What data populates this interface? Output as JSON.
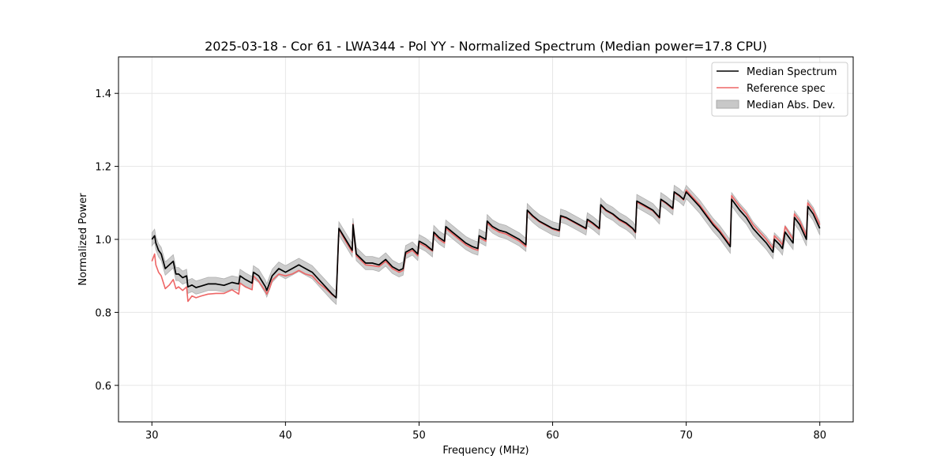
{
  "chart_data": {
    "type": "line",
    "title": "2025-03-18 - Cor 61 - LWA344 - Pol YY - Normalized Spectrum (Median power=17.8 CPU)",
    "xlabel": "Frequency (MHz)",
    "ylabel": "Normalized Power",
    "xlim": [
      27.5,
      82.5
    ],
    "ylim": [
      0.5,
      1.5
    ],
    "x_ticks": [
      30,
      40,
      50,
      60,
      70,
      80
    ],
    "y_ticks": [
      0.6,
      0.8,
      1.0,
      1.2,
      1.4
    ],
    "x_tick_labels": [
      "30",
      "40",
      "50",
      "60",
      "70",
      "80"
    ],
    "y_tick_labels": [
      "0.6",
      "0.8",
      "1.0",
      "1.2",
      "1.4"
    ],
    "grid": true,
    "legend_position": "top-right",
    "mad_halfwidth": 0.018,
    "series": [
      {
        "name": "Median Spectrum",
        "color": "#000000",
        "x": [
          30.0,
          30.2,
          30.3,
          30.5,
          30.7,
          31.0,
          31.3,
          31.6,
          31.8,
          32.0,
          32.3,
          32.6,
          32.7,
          33.0,
          33.3,
          33.7,
          34.2,
          34.8,
          35.4,
          36.0,
          36.5,
          36.6,
          37.0,
          37.5,
          37.6,
          38.0,
          38.5,
          38.6,
          38.8,
          39.0,
          39.5,
          40.0,
          40.5,
          41.0,
          41.5,
          42.0,
          42.5,
          43.0,
          43.5,
          43.8,
          44.0,
          44.5,
          45.0,
          45.05,
          45.3,
          46.0,
          46.5,
          47.0,
          47.5,
          48.0,
          48.5,
          48.8,
          49.0,
          49.5,
          49.9,
          50.0,
          50.5,
          51.0,
          51.1,
          51.5,
          51.9,
          52.0,
          52.5,
          53.0,
          53.5,
          54.0,
          54.4,
          54.5,
          55.0,
          55.1,
          55.5,
          56.0,
          56.5,
          57.0,
          57.5,
          58.0,
          58.1,
          58.5,
          59.0,
          59.5,
          60.0,
          60.5,
          60.6,
          61.0,
          61.5,
          62.0,
          62.5,
          62.6,
          63.0,
          63.5,
          63.6,
          64.0,
          64.5,
          65.0,
          65.5,
          66.0,
          66.2,
          66.3,
          66.8,
          67.5,
          68.0,
          68.1,
          68.5,
          69.0,
          69.1,
          69.5,
          69.8,
          70.0,
          70.5,
          71.0,
          71.5,
          72.0,
          72.5,
          73.0,
          73.3,
          73.4,
          74.0,
          74.5,
          75.0,
          75.5,
          76.0,
          76.5,
          76.6,
          77.0,
          77.2,
          77.4,
          78.0,
          78.1,
          78.5,
          79.0,
          79.1,
          79.5,
          80.0
        ],
        "y": [
          1.0,
          1.01,
          0.99,
          0.97,
          0.96,
          0.92,
          0.93,
          0.94,
          0.905,
          0.905,
          0.895,
          0.9,
          0.87,
          0.875,
          0.868,
          0.872,
          0.878,
          0.878,
          0.874,
          0.882,
          0.878,
          0.9,
          0.89,
          0.88,
          0.91,
          0.9,
          0.87,
          0.86,
          0.88,
          0.9,
          0.92,
          0.91,
          0.92,
          0.93,
          0.92,
          0.91,
          0.89,
          0.87,
          0.85,
          0.84,
          1.03,
          1.0,
          0.97,
          1.04,
          0.96,
          0.935,
          0.935,
          0.93,
          0.945,
          0.925,
          0.915,
          0.92,
          0.965,
          0.975,
          0.96,
          0.995,
          0.985,
          0.97,
          1.02,
          1.005,
          0.995,
          1.035,
          1.02,
          1.005,
          0.99,
          0.98,
          0.975,
          1.01,
          1.0,
          1.05,
          1.035,
          1.025,
          1.02,
          1.01,
          1.0,
          0.985,
          1.08,
          1.065,
          1.05,
          1.04,
          1.03,
          1.025,
          1.065,
          1.06,
          1.05,
          1.04,
          1.03,
          1.055,
          1.045,
          1.03,
          1.095,
          1.08,
          1.07,
          1.055,
          1.045,
          1.03,
          1.02,
          1.105,
          1.095,
          1.08,
          1.06,
          1.11,
          1.1,
          1.085,
          1.13,
          1.12,
          1.11,
          1.13,
          1.11,
          1.09,
          1.065,
          1.04,
          1.02,
          0.995,
          0.98,
          1.11,
          1.08,
          1.06,
          1.03,
          1.01,
          0.99,
          0.965,
          1.0,
          0.985,
          0.975,
          1.02,
          0.99,
          1.06,
          1.04,
          1.0,
          1.09,
          1.07,
          1.03
        ]
      },
      {
        "name": "Reference spec",
        "color": "#ee6666",
        "x": [
          30.0,
          30.2,
          30.3,
          30.5,
          30.7,
          31.0,
          31.3,
          31.6,
          31.8,
          32.0,
          32.3,
          32.6,
          32.7,
          33.0,
          33.3,
          33.7,
          34.2,
          34.8,
          35.4,
          36.0,
          36.5,
          36.6,
          37.0,
          37.5,
          37.6,
          38.0,
          38.5,
          38.6,
          38.8,
          39.0,
          39.5,
          40.0,
          40.5,
          41.0,
          41.5,
          42.0,
          42.5,
          43.0,
          43.5,
          43.8,
          44.0,
          44.5,
          45.0,
          45.05,
          45.3,
          46.0,
          46.5,
          47.0,
          47.5,
          48.0,
          48.5,
          48.8,
          49.0,
          49.5,
          49.9,
          50.0,
          50.5,
          51.0,
          51.1,
          51.5,
          51.9,
          52.0,
          52.5,
          53.0,
          53.5,
          54.0,
          54.4,
          54.5,
          55.0,
          55.1,
          55.5,
          56.0,
          56.5,
          57.0,
          57.5,
          58.0,
          58.1,
          58.5,
          59.0,
          59.5,
          60.0,
          60.5,
          60.6,
          61.0,
          61.5,
          62.0,
          62.5,
          62.6,
          63.0,
          63.5,
          63.6,
          64.0,
          64.5,
          65.0,
          65.5,
          66.0,
          66.2,
          66.3,
          66.8,
          67.5,
          68.0,
          68.1,
          68.5,
          69.0,
          69.1,
          69.5,
          69.8,
          70.0,
          70.5,
          71.0,
          71.5,
          72.0,
          72.5,
          73.0,
          73.3,
          73.4,
          74.0,
          74.5,
          75.0,
          75.5,
          76.0,
          76.5,
          76.6,
          77.0,
          77.2,
          77.4,
          78.0,
          78.1,
          78.5,
          79.0,
          79.1,
          79.5,
          80.0
        ],
        "y": [
          0.94,
          0.96,
          0.93,
          0.91,
          0.9,
          0.865,
          0.875,
          0.89,
          0.865,
          0.87,
          0.86,
          0.87,
          0.83,
          0.845,
          0.84,
          0.845,
          0.85,
          0.852,
          0.852,
          0.862,
          0.85,
          0.88,
          0.87,
          0.862,
          0.9,
          0.885,
          0.858,
          0.85,
          0.865,
          0.888,
          0.905,
          0.9,
          0.905,
          0.915,
          0.905,
          0.9,
          0.88,
          0.865,
          0.848,
          0.84,
          1.028,
          0.995,
          0.965,
          1.042,
          0.955,
          0.93,
          0.928,
          0.925,
          0.94,
          0.92,
          0.91,
          0.915,
          0.96,
          0.97,
          0.955,
          0.99,
          0.98,
          0.968,
          1.015,
          1.0,
          0.99,
          1.03,
          1.015,
          1.0,
          0.985,
          0.975,
          0.97,
          1.005,
          0.995,
          1.045,
          1.03,
          1.02,
          1.015,
          1.005,
          0.995,
          0.98,
          1.078,
          1.062,
          1.048,
          1.038,
          1.028,
          1.022,
          1.062,
          1.058,
          1.048,
          1.038,
          1.028,
          1.052,
          1.042,
          1.028,
          1.092,
          1.078,
          1.068,
          1.052,
          1.042,
          1.028,
          1.018,
          1.102,
          1.092,
          1.078,
          1.058,
          1.108,
          1.098,
          1.083,
          1.128,
          1.118,
          1.108,
          1.135,
          1.115,
          1.095,
          1.07,
          1.045,
          1.025,
          1.0,
          0.985,
          1.12,
          1.09,
          1.07,
          1.04,
          1.02,
          1.0,
          0.975,
          1.01,
          0.995,
          0.985,
          1.035,
          1.0,
          1.07,
          1.05,
          1.01,
          1.1,
          1.08,
          1.04
        ]
      }
    ],
    "band": {
      "name": "Median Abs. Dev.",
      "color": "#bbbbbb"
    }
  }
}
